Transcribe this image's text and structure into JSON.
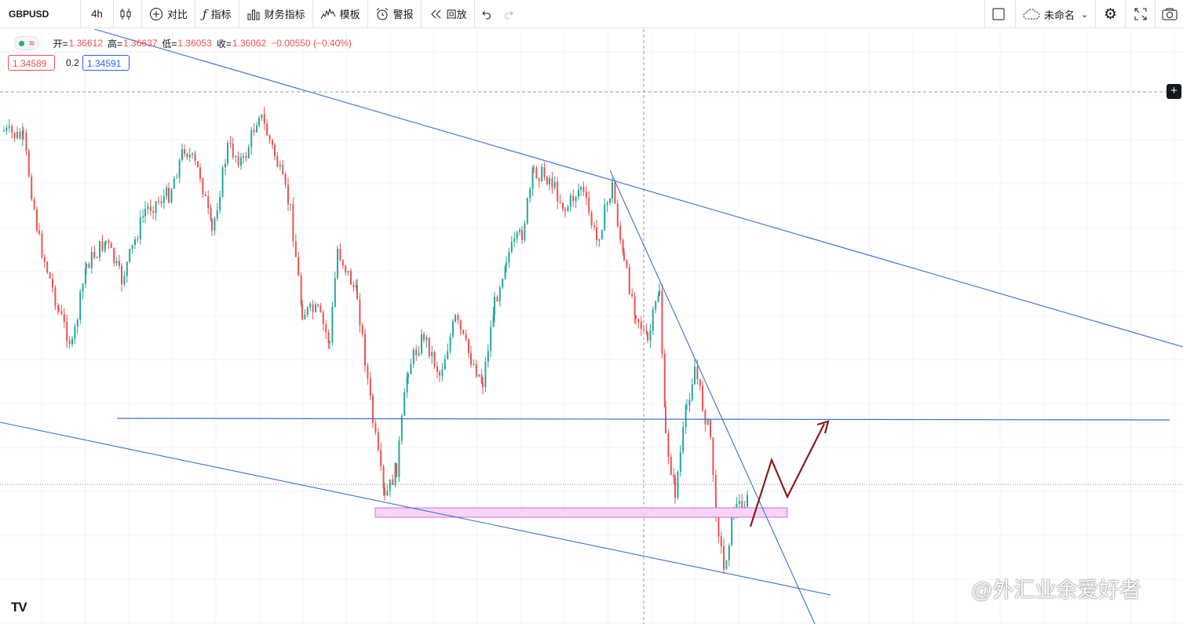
{
  "toolbar": {
    "symbol": "GBPUSD",
    "interval": "4h",
    "compare_label": "对比",
    "indicators_label": "指标",
    "financials_label": "财务指标",
    "templates_label": "模板",
    "alert_label": "警报",
    "replay_label": "回放",
    "layout_name": "未命名"
  },
  "legend": {
    "open_label": "开=",
    "open": "1.36612",
    "high_label": "高=",
    "high": "1.36637",
    "low_label": "低=",
    "low": "1.36053",
    "close_label": "收=",
    "close": "1.36062",
    "change": "−0.00550 (−0.40%)"
  },
  "trade": {
    "sell": "1.34589",
    "spread": "0.2",
    "buy": "1.34591"
  },
  "watermark": "@外汇业余爱好者",
  "logo": "TV",
  "colors": {
    "up": "#26a69a",
    "down": "#ef5350",
    "trendline": "#2962ff",
    "arrow": "#8b1a1a",
    "zone_fill": "#f6d4f8",
    "zone_border": "#d070d8"
  },
  "chart_data": {
    "type": "candlestick",
    "symbol": "GBPUSD",
    "timeframe": "4h",
    "annotations": [
      "descending upper trendline",
      "descending lower trendline",
      "steep descending trendline",
      "horizontal resistance line",
      "support zone rectangle",
      "zigzag arrow projection"
    ]
  }
}
